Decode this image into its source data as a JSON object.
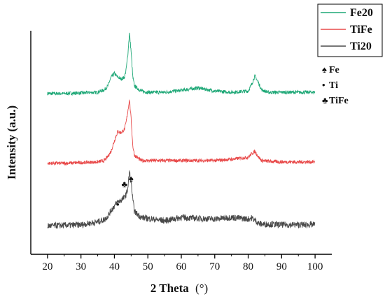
{
  "chart_data": {
    "type": "line",
    "xlabel": "2 Theta",
    "xlabel_unit": "(°)",
    "ylabel": "Intensity (a.u.)",
    "xlim": [
      15,
      105
    ],
    "x_ticks": [
      20,
      30,
      40,
      50,
      60,
      70,
      80,
      90,
      100
    ],
    "x_tick_labels": [
      "20",
      "30",
      "40",
      "50",
      "60",
      "70",
      "80",
      "90",
      "100"
    ],
    "y_ticks_shown": false,
    "legend_position": "top-right",
    "series": [
      {
        "name": "Fe20",
        "color": "#1fa877",
        "x": [
          20,
          25,
          30,
          35,
          37,
          38,
          39,
          40,
          41,
          42,
          43,
          43.5,
          44,
          44.5,
          45,
          45.5,
          46,
          48,
          50,
          55,
          60,
          65,
          70,
          75,
          80,
          81,
          82,
          83,
          84,
          86,
          90,
          95,
          100
        ],
        "y": [
          0.04,
          0.04,
          0.05,
          0.06,
          0.1,
          0.16,
          0.3,
          0.36,
          0.3,
          0.27,
          0.3,
          0.42,
          0.65,
          1.0,
          0.7,
          0.3,
          0.16,
          0.08,
          0.06,
          0.06,
          0.09,
          0.13,
          0.08,
          0.06,
          0.08,
          0.18,
          0.32,
          0.22,
          0.1,
          0.06,
          0.06,
          0.06,
          0.06
        ]
      },
      {
        "name": "TiFe",
        "color": "#e84a4a",
        "x": [
          20,
          25,
          30,
          35,
          37,
          38,
          39,
          40,
          41,
          42,
          43,
          43.5,
          44,
          44.5,
          45,
          45.5,
          46,
          48,
          50,
          55,
          60,
          65,
          70,
          75,
          80,
          81,
          82,
          83,
          84,
          86,
          90,
          95,
          100
        ],
        "y": [
          0.04,
          0.04,
          0.05,
          0.06,
          0.08,
          0.14,
          0.22,
          0.38,
          0.52,
          0.5,
          0.55,
          0.66,
          0.82,
          1.0,
          0.7,
          0.3,
          0.16,
          0.08,
          0.08,
          0.08,
          0.08,
          0.08,
          0.08,
          0.1,
          0.13,
          0.18,
          0.22,
          0.14,
          0.08,
          0.07,
          0.06,
          0.06,
          0.06
        ]
      },
      {
        "name": "Ti20",
        "color": "#4a4a4a",
        "x": [
          20,
          25,
          30,
          35,
          37,
          38,
          39,
          40,
          41,
          42,
          43,
          43.5,
          44,
          44.5,
          45,
          45.5,
          46,
          48,
          50,
          55,
          60,
          65,
          70,
          75,
          80,
          81,
          82,
          83,
          84,
          86,
          90,
          95,
          100
        ],
        "y": [
          0.05,
          0.06,
          0.07,
          0.12,
          0.16,
          0.22,
          0.32,
          0.4,
          0.47,
          0.5,
          0.55,
          0.6,
          0.7,
          1.0,
          0.8,
          0.5,
          0.3,
          0.2,
          0.18,
          0.14,
          0.2,
          0.18,
          0.17,
          0.2,
          0.17,
          0.19,
          0.15,
          0.1,
          0.08,
          0.08,
          0.07,
          0.07,
          0.07
        ]
      }
    ],
    "phase_markers": [
      {
        "symbol": "♠",
        "label": "Fe",
        "positions": [
          45
        ]
      },
      {
        "symbol": "•",
        "label": "Ti",
        "positions": [
          41
        ]
      },
      {
        "symbol": "♣",
        "label": "TiFe",
        "positions": [
          43
        ]
      }
    ]
  }
}
